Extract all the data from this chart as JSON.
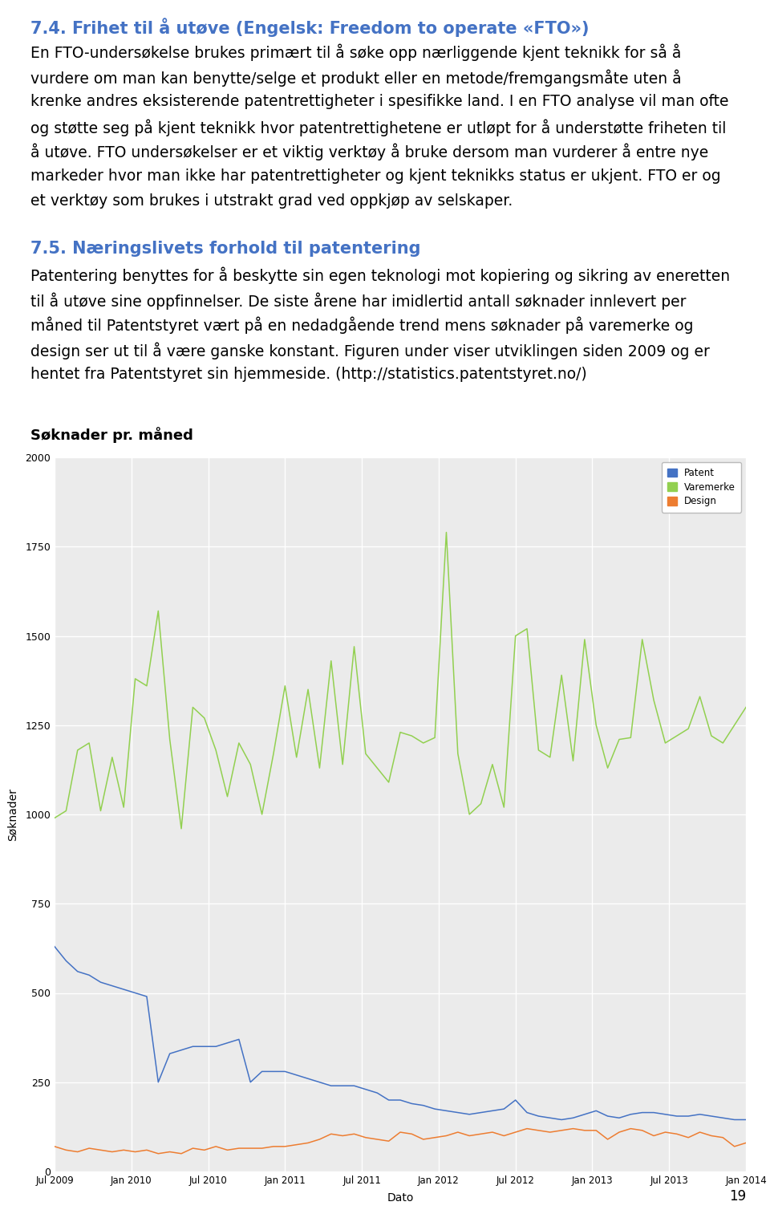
{
  "title_section1": "7.4. Frihet til å utøve (Engelsk: Freedom to operate «FTO»)",
  "body_section1_lines": [
    "En FTO-undersøkelse brukes primært til å søke opp nærliggende kjent teknikk for så å",
    "vurdere om man kan benytte/selge et produkt eller en metode/fremgangsmåte uten å",
    "krenke andres eksisterende patentrettigheter i spesifikke land. I en FTO analyse vil man ofte",
    "og støtte seg på kjent teknikk hvor patentrettighetene er utløpt for å understøtte friheten til",
    "å utøve. FTO undersøkelser er et viktig verktøy å bruke dersom man vurderer å entre nye",
    "markeder hvor man ikke har patentrettigheter og kjent teknikks status er ukjent. FTO er og",
    "et verktøy som brukes i utstrakt grad ved oppkjøp av selskaper."
  ],
  "title_section2": "7.5. Næringslivets forhold til patentering",
  "body_section2_lines": [
    "Patentering benyttes for å beskytte sin egen teknologi mot kopiering og sikring av eneretten",
    "til å utøve sine oppfinnelser. De siste årene har imidlertid antall søknader innlevert per",
    "måned til Patentstyret vært på en nedadgående trend mens søknader på varemerke og",
    "design ser ut til å være ganske konstant. Figuren under viser utviklingen siden 2009 og er",
    "hentet fra Patentstyret sin hjemmeside. (http://statistics.patentstyret.no/)"
  ],
  "chart_title": "Søknader pr. måned",
  "xlabel": "Dato",
  "ylabel": "Søknader",
  "ylim": [
    0,
    2000
  ],
  "yticks": [
    0,
    250,
    500,
    750,
    1000,
    1250,
    1500,
    1750,
    2000
  ],
  "xtick_labels": [
    "Jul 2009",
    "Jan 2010",
    "Jul 2010",
    "Jan 2011",
    "Jul 2011",
    "Jan 2012",
    "Jul 2012",
    "Jan 2013",
    "Jul 2013",
    "Jan 2014"
  ],
  "legend_labels": [
    "Patent",
    "Varemerke",
    "Design"
  ],
  "patent_color": "#4472c4",
  "varemerke_color": "#92d050",
  "design_color": "#ed7d31",
  "background_color": "#ffffff",
  "title_color": "#4472c4",
  "text_color": "#000000",
  "page_number": "19",
  "patent_data": [
    630,
    590,
    560,
    550,
    530,
    520,
    510,
    500,
    490,
    250,
    330,
    340,
    350,
    350,
    350,
    360,
    370,
    250,
    280,
    280,
    280,
    270,
    260,
    250,
    240,
    240,
    240,
    230,
    220,
    200,
    200,
    190,
    185,
    175,
    170,
    165,
    160,
    165,
    170,
    175,
    200,
    165,
    155,
    150,
    145,
    150,
    160,
    170,
    155,
    150,
    160,
    165,
    165,
    160,
    155,
    155,
    160,
    155,
    150,
    145,
    145
  ],
  "varemerke_data": [
    990,
    1010,
    1180,
    1200,
    1010,
    1160,
    1020,
    1380,
    1360,
    1570,
    1210,
    960,
    1300,
    1270,
    1180,
    1050,
    1200,
    1140,
    1000,
    1170,
    1360,
    1160,
    1350,
    1130,
    1430,
    1140,
    1470,
    1170,
    1130,
    1090,
    1230,
    1220,
    1200,
    1215,
    1790,
    1170,
    1000,
    1030,
    1140,
    1020,
    1500,
    1520,
    1180,
    1160,
    1390,
    1150,
    1490,
    1250,
    1130,
    1210,
    1215,
    1490,
    1320,
    1200,
    1220,
    1240,
    1330,
    1220,
    1200,
    1250,
    1300
  ],
  "design_data": [
    70,
    60,
    55,
    65,
    60,
    55,
    60,
    55,
    60,
    50,
    55,
    50,
    65,
    60,
    70,
    60,
    65,
    65,
    65,
    70,
    70,
    75,
    80,
    90,
    105,
    100,
    105,
    95,
    90,
    85,
    110,
    105,
    90,
    95,
    100,
    110,
    100,
    105,
    110,
    100,
    110,
    120,
    115,
    110,
    115,
    120,
    115,
    115,
    90,
    110,
    120,
    115,
    100,
    110,
    105,
    95,
    110,
    100,
    95,
    70,
    80
  ]
}
